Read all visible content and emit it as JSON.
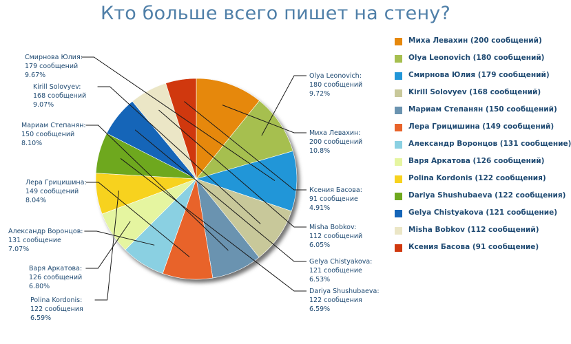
{
  "title": "Кто больше всего пишет на стену?",
  "chart_data": {
    "type": "pie",
    "title": "Кто больше всего пишет на стену?",
    "start_angle_deg": 90,
    "direction": "clockwise",
    "legend_position": "right",
    "slices": [
      {
        "name": "Миха Левахин",
        "value": 200,
        "unit": "сообщений",
        "percent": "10.8%",
        "legend": "Миха Левахин (200 сообщений)",
        "color": "#e6880c"
      },
      {
        "name": "Olya Leonovich",
        "value": 180,
        "unit": "сообщений",
        "percent": "9.72%",
        "legend": "Olya Leonovich (180 сообщений)",
        "color": "#a6bf4f"
      },
      {
        "name": "Смирнова Юлия",
        "value": 179,
        "unit": "сообщений",
        "percent": "9.67%",
        "legend": "Смирнова Юлия (179 сообщений)",
        "color": "#2196d8"
      },
      {
        "name": "Kirill Solovyev",
        "value": 168,
        "unit": "сообщений",
        "percent": "9.07%",
        "legend": "Kirill Solovyev (168 сообщений)",
        "color": "#c8c89a"
      },
      {
        "name": "Мариам Степанян",
        "value": 150,
        "unit": "сообщений",
        "percent": "8.10%",
        "legend": "Мариам Степанян (150 сообщений)",
        "color": "#6a93b0"
      },
      {
        "name": "Лера Грицишина",
        "value": 149,
        "unit": "сообщений",
        "percent": "8.04%",
        "legend": "Лера Грицишина (149 сообщений)",
        "color": "#e8632a"
      },
      {
        "name": "Александр Воронцов",
        "value": 131,
        "unit": "сообщение",
        "percent": "7.07%",
        "legend": "Александр Воронцов (131 сообщение)",
        "color": "#8ad0e2"
      },
      {
        "name": "Варя Аркатова",
        "value": 126,
        "unit": "сообщений",
        "percent": "6.80%",
        "legend": "Варя Аркатова (126 сообщений)",
        "color": "#e5f5a0"
      },
      {
        "name": "Polina Kordonis",
        "value": 122,
        "unit": "сообщения",
        "percent": "6.59%",
        "legend": "Polina Kordonis (122 сообщения)",
        "color": "#f7d21e"
      },
      {
        "name": "Dariya Shushubaeva",
        "value": 122,
        "unit": "сообщения",
        "percent": "6.59%",
        "legend": "Dariya Shushubaeva (122 сообщения)",
        "color": "#6ea81e"
      },
      {
        "name": "Gelya Chistyakova",
        "value": 121,
        "unit": "сообщение",
        "percent": "6.53%",
        "legend": "Gelya Chistyakova (121 сообщение)",
        "color": "#1565b8"
      },
      {
        "name": "Misha Bobkov",
        "value": 112,
        "unit": "сообщений",
        "percent": "6.05%",
        "legend": "Misha Bobkov (112 сообщений)",
        "color": "#ebe6c6"
      },
      {
        "name": "Ксения Басова",
        "value": 91,
        "unit": "сообщение",
        "percent": "4.91%",
        "legend": "Ксения Басова (91 сообщение)",
        "color": "#d0380e"
      }
    ]
  }
}
